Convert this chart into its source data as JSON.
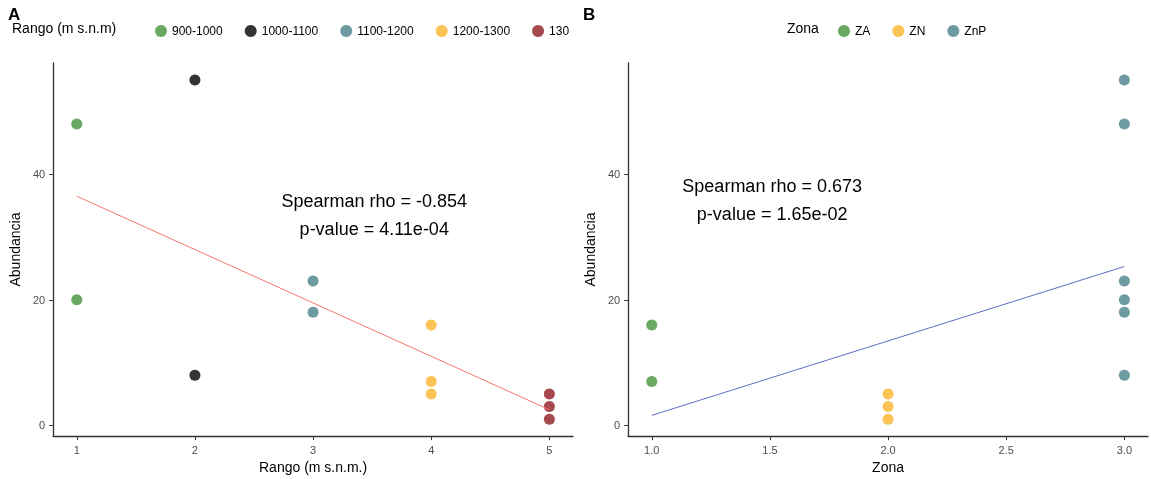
{
  "chart_data": [
    {
      "type": "scatter",
      "title": "A",
      "xlabel": "Rango (m s.n.m.)",
      "ylabel": "Abundancia",
      "legend_title": "Rango (m s.n.m)",
      "legend": "top",
      "grid": false,
      "marker": "circle",
      "xlim": [
        0.8,
        5.2
      ],
      "xticks": [
        1,
        2,
        3,
        4,
        5
      ],
      "ylim": [
        -1.7,
        57.7
      ],
      "yticks": [
        0,
        20,
        40
      ],
      "annotations": [
        "Spearman rho = -0.854",
        "p-value = 4.11e-04"
      ],
      "series": [
        {
          "name": "900-1000",
          "color": "#43943b",
          "x": [
            1,
            1
          ],
          "values": [
            48,
            20
          ]
        },
        {
          "name": "1000-1100",
          "color": "#000000",
          "x": [
            2,
            2
          ],
          "values": [
            55,
            8
          ]
        },
        {
          "name": "1100-1200",
          "color": "#4a8289",
          "x": [
            3,
            3
          ],
          "values": [
            23,
            18
          ]
        },
        {
          "name": "1200-1300",
          "color": "#fbb52c",
          "x": [
            4,
            4,
            4
          ],
          "values": [
            16,
            7,
            5
          ]
        },
        {
          "name": "130",
          "color": "#8f1b22",
          "x": [
            5,
            5,
            5
          ],
          "values": [
            5,
            3,
            1
          ]
        },
        {
          "type": "line",
          "marker": "none",
          "color": "#f8766d",
          "x": [
            1,
            5
          ],
          "values": [
            36.5,
            2.5
          ]
        }
      ]
    },
    {
      "type": "scatter",
      "title": "B",
      "xlabel": "Zona",
      "ylabel": "Abundancia",
      "legend_title": "Zona",
      "legend": "top",
      "grid": false,
      "marker": "circle",
      "xlim": [
        0.9,
        3.1
      ],
      "xticks": [
        {
          "value": 1,
          "label": "1.0"
        },
        1.5,
        {
          "value": 2,
          "label": "2.0"
        },
        2.5,
        {
          "value": 3,
          "label": "3.0"
        }
      ],
      "ylim": [
        -1.7,
        57.7
      ],
      "yticks": [
        0,
        20,
        40
      ],
      "annotations": [
        "Spearman rho = 0.673",
        "p-value = 1.65e-02"
      ],
      "series": [
        {
          "name": "ZA",
          "color": "#43943b",
          "x": [
            1,
            1
          ],
          "values": [
            16,
            7
          ]
        },
        {
          "name": "ZN",
          "color": "#fbb52c",
          "x": [
            2,
            2,
            2
          ],
          "values": [
            5,
            3,
            1
          ]
        },
        {
          "name": "ZnP",
          "color": "#4a8289",
          "x": [
            3,
            3,
            3,
            3,
            3,
            3
          ],
          "values": [
            55,
            48,
            23,
            20,
            18,
            8
          ]
        },
        {
          "type": "line",
          "marker": "none",
          "color": "#5a6ec0",
          "x": [
            1,
            3
          ],
          "values": [
            1.6,
            25.3
          ]
        }
      ]
    }
  ]
}
